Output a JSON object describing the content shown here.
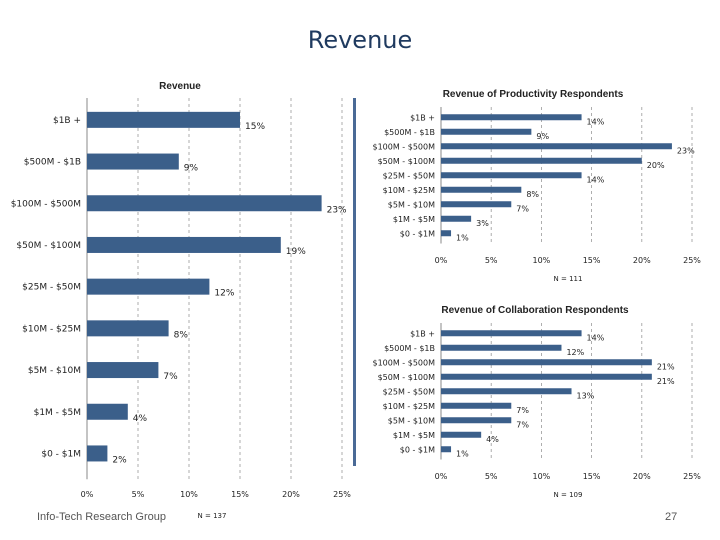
{
  "slide": {
    "title": "Revenue",
    "footer_left": "Info-Tech Research Group",
    "page_number": "27"
  },
  "colors": {
    "bar": "#3b5f8a",
    "grid": "#9a9a9a",
    "text": "#222222",
    "divider": "#4a6a96"
  },
  "chart_data": [
    {
      "type": "bar",
      "orientation": "horizontal",
      "title": "Revenue",
      "categories": [
        "$1B +",
        "$500M - $1B",
        "$100M - $500M",
        "$50M - $100M",
        "$25M - $50M",
        "$10M - $25M",
        "$5M - $10M",
        "$1M - $5M",
        "$0 - $1M"
      ],
      "values": [
        15,
        9,
        23,
        19,
        12,
        8,
        7,
        4,
        2
      ],
      "value_labels": [
        "15%",
        "9%",
        "23%",
        "19%",
        "12%",
        "8%",
        "7%",
        "4%",
        "2%"
      ],
      "xlim": [
        0,
        25
      ],
      "xticks": [
        "0%",
        "5%",
        "10%",
        "15%",
        "20%",
        "25%"
      ],
      "gridlines": "vertical dashed",
      "note": "N = 137"
    },
    {
      "type": "bar",
      "orientation": "horizontal",
      "title": "Revenue of Productivity Respondents",
      "categories": [
        "$1B +",
        "$500M - $1B",
        "$100M - $500M",
        "$50M - $100M",
        "$25M - $50M",
        "$10M - $25M",
        "$5M - $10M",
        "$1M - $5M",
        "$0 - $1M"
      ],
      "values": [
        14,
        9,
        23,
        20,
        14,
        8,
        7,
        3,
        1
      ],
      "value_labels": [
        "14%",
        "9%",
        "23%",
        "20%",
        "14%",
        "8%",
        "7%",
        "3%",
        "1%"
      ],
      "xlim": [
        0,
        25
      ],
      "xticks": [
        "0%",
        "5%",
        "10%",
        "15%",
        "20%",
        "25%"
      ],
      "gridlines": "vertical dashed",
      "note": "N = 111"
    },
    {
      "type": "bar",
      "orientation": "horizontal",
      "title": "Revenue of Collaboration Respondents",
      "categories": [
        "$1B +",
        "$500M - $1B",
        "$100M - $500M",
        "$50M - $100M",
        "$25M - $50M",
        "$10M - $25M",
        "$5M - $10M",
        "$1M - $5M",
        "$0 - $1M"
      ],
      "values": [
        14,
        12,
        21,
        21,
        13,
        7,
        7,
        4,
        1
      ],
      "value_labels": [
        "14%",
        "12%",
        "21%",
        "21%",
        "13%",
        "7%",
        "7%",
        "4%",
        "1%"
      ],
      "xlim": [
        0,
        25
      ],
      "xticks": [
        "0%",
        "5%",
        "10%",
        "15%",
        "20%",
        "25%"
      ],
      "gridlines": "vertical dashed",
      "note": "N = 109"
    }
  ]
}
